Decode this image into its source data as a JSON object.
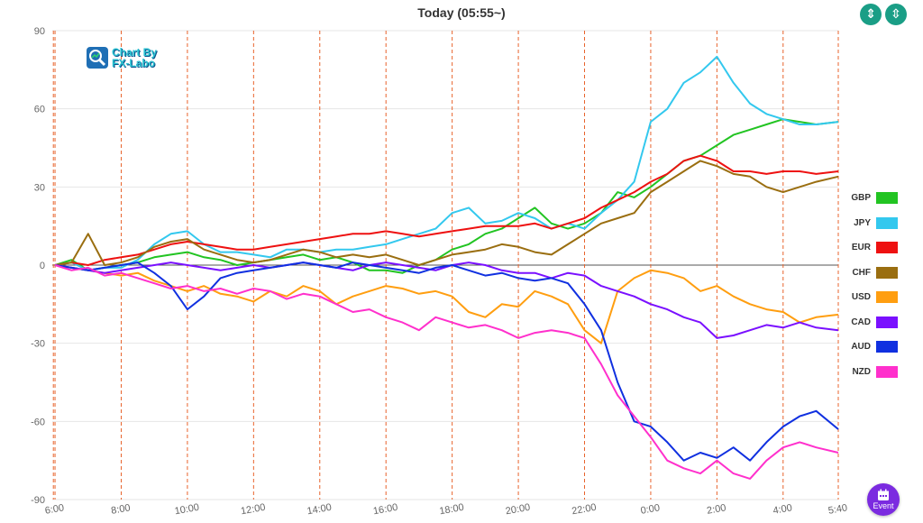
{
  "title": "Today  (05:55~)",
  "logo": {
    "line1": "Chart By",
    "line2": "FX-Labo"
  },
  "controls": {
    "compress_icon": "vertical-compress-icon",
    "expand_icon": "vertical-expand-icon"
  },
  "event_button": {
    "label": "Event",
    "icon": "calendar-icon",
    "color": "#7b2be0"
  },
  "chart_data": {
    "type": "line",
    "title": "Today  (05:55~)",
    "xlabel": "",
    "ylabel": "",
    "ylim": [
      -90,
      90
    ],
    "yticks": [
      -90,
      -60,
      -30,
      0,
      30,
      60,
      90
    ],
    "xlim": [
      5.917,
      29.667
    ],
    "xtick_labels": [
      "6:00",
      "8:00",
      "10:00",
      "12:00",
      "14:00",
      "16:00",
      "18:00",
      "20:00",
      "22:00",
      "0:00",
      "2:00",
      "4:00",
      "5:40"
    ],
    "xtick_values": [
      6,
      8,
      10,
      12,
      14,
      16,
      18,
      20,
      22,
      24,
      26,
      28,
      29.667
    ],
    "event_lines": [
      5.95,
      6.0,
      8.0,
      10.0,
      12.0,
      14.0,
      16.0,
      18.0,
      20.0,
      22.0,
      24.0,
      26.0,
      28.0,
      29.667
    ],
    "grid": true,
    "legend_position": "right",
    "x": [
      6,
      6.5,
      7,
      7.5,
      8,
      8.5,
      9,
      9.5,
      10,
      10.5,
      11,
      11.5,
      12,
      12.5,
      13,
      13.5,
      14,
      14.5,
      15,
      15.5,
      16,
      16.5,
      17,
      17.5,
      18,
      18.5,
      19,
      19.5,
      20,
      20.5,
      21,
      21.5,
      22,
      22.5,
      23,
      23.5,
      24,
      24.5,
      25,
      25.5,
      26,
      26.5,
      27,
      27.5,
      28,
      28.5,
      29,
      29.667
    ],
    "series": [
      {
        "name": "GBP",
        "color": "#22c422",
        "values": [
          0,
          2,
          -2,
          -1,
          0,
          1,
          3,
          4,
          5,
          3,
          2,
          0,
          1,
          2,
          3,
          4,
          2,
          3,
          1,
          -2,
          -2,
          -3,
          0,
          2,
          6,
          8,
          12,
          14,
          18,
          22,
          16,
          14,
          16,
          20,
          28,
          26,
          30,
          35,
          40,
          42,
          46,
          50,
          52,
          54,
          56,
          55,
          54,
          55
        ]
      },
      {
        "name": "JPY",
        "color": "#33c8ee",
        "values": [
          0,
          1,
          -2,
          -1,
          -1,
          2,
          8,
          12,
          13,
          8,
          5,
          5,
          4,
          3,
          6,
          6,
          5,
          6,
          6,
          7,
          8,
          10,
          12,
          14,
          20,
          22,
          16,
          17,
          20,
          18,
          14,
          16,
          14,
          20,
          25,
          32,
          55,
          60,
          70,
          74,
          80,
          70,
          62,
          58,
          56,
          54,
          54,
          55
        ]
      },
      {
        "name": "EUR",
        "color": "#ee1111",
        "values": [
          0,
          1,
          0,
          2,
          3,
          4,
          6,
          8,
          9,
          8,
          7,
          6,
          6,
          7,
          8,
          9,
          10,
          11,
          12,
          12,
          13,
          12,
          11,
          12,
          13,
          14,
          15,
          15,
          15,
          16,
          14,
          16,
          18,
          22,
          25,
          28,
          32,
          35,
          40,
          42,
          40,
          36,
          36,
          35,
          36,
          36,
          35,
          36
        ]
      },
      {
        "name": "CHF",
        "color": "#9a6e10",
        "values": [
          0,
          1,
          12,
          0,
          1,
          3,
          7,
          9,
          10,
          6,
          4,
          2,
          1,
          2,
          4,
          6,
          5,
          3,
          4,
          3,
          4,
          2,
          0,
          2,
          4,
          5,
          6,
          8,
          7,
          5,
          4,
          8,
          12,
          16,
          18,
          20,
          28,
          32,
          36,
          40,
          38,
          35,
          34,
          30,
          28,
          30,
          32,
          34
        ]
      },
      {
        "name": "USD",
        "color": "#ff9e10",
        "values": [
          0,
          -1,
          -2,
          -3,
          -4,
          -3,
          -6,
          -8,
          -10,
          -8,
          -11,
          -12,
          -14,
          -10,
          -12,
          -8,
          -10,
          -15,
          -12,
          -10,
          -8,
          -9,
          -11,
          -10,
          -12,
          -18,
          -20,
          -15,
          -16,
          -10,
          -12,
          -15,
          -25,
          -30,
          -10,
          -5,
          -2,
          -3,
          -5,
          -10,
          -8,
          -12,
          -15,
          -17,
          -18,
          -22,
          -20,
          -19
        ]
      },
      {
        "name": "CAD",
        "color": "#7a10ff",
        "values": [
          0,
          -1,
          -2,
          -3,
          -2,
          -1,
          0,
          1,
          0,
          -1,
          -2,
          -1,
          0,
          -1,
          0,
          1,
          0,
          -1,
          -2,
          0,
          1,
          0,
          -1,
          -2,
          0,
          1,
          0,
          -2,
          -3,
          -3,
          -5,
          -3,
          -4,
          -8,
          -10,
          -12,
          -15,
          -17,
          -20,
          -22,
          -28,
          -27,
          -25,
          -23,
          -24,
          -22,
          -24,
          -25
        ]
      },
      {
        "name": "AUD",
        "color": "#1030e0",
        "values": [
          0,
          -1,
          -2,
          -1,
          0,
          1,
          -3,
          -8,
          -17,
          -12,
          -5,
          -3,
          -2,
          -1,
          0,
          1,
          0,
          -1,
          1,
          0,
          -1,
          -2,
          -3,
          -1,
          0,
          -2,
          -4,
          -3,
          -5,
          -6,
          -5,
          -7,
          -15,
          -25,
          -45,
          -60,
          -62,
          -68,
          -75,
          -72,
          -74,
          -70,
          -75,
          -68,
          -62,
          -58,
          -56,
          -63
        ]
      },
      {
        "name": "NZD",
        "color": "#ff30cc",
        "values": [
          0,
          -2,
          -1,
          -4,
          -3,
          -5,
          -7,
          -9,
          -8,
          -10,
          -9,
          -11,
          -9,
          -10,
          -13,
          -11,
          -12,
          -15,
          -18,
          -17,
          -20,
          -22,
          -25,
          -20,
          -22,
          -24,
          -23,
          -25,
          -28,
          -26,
          -25,
          -26,
          -28,
          -38,
          -50,
          -58,
          -66,
          -75,
          -78,
          -80,
          -75,
          -80,
          -82,
          -75,
          -70,
          -68,
          -70,
          -72
        ]
      }
    ]
  }
}
